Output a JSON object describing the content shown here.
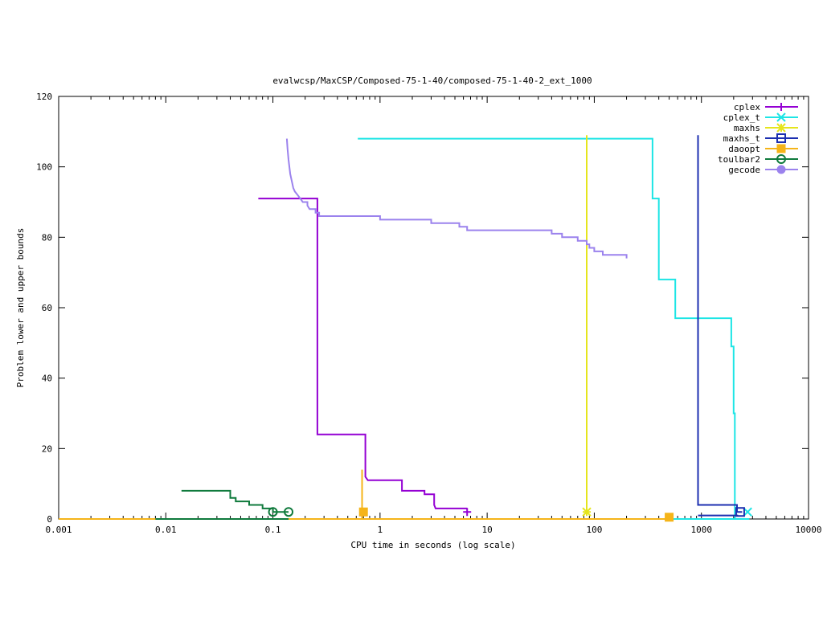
{
  "chart_data": {
    "type": "line",
    "title": "evalwcsp/MaxCSP/Composed-75-1-40/composed-75-1-40-2_ext_1000",
    "xlabel": "CPU time in seconds (log scale)",
    "ylabel": "Problem lower and upper bounds",
    "xscale": "log",
    "xlim": [
      0.001,
      10000
    ],
    "ylim": [
      0,
      120
    ],
    "xticks": [
      {
        "value": 0.001,
        "label": "0.001"
      },
      {
        "value": 0.01,
        "label": "0.01"
      },
      {
        "value": 0.1,
        "label": "0.1"
      },
      {
        "value": 1,
        "label": "1"
      },
      {
        "value": 10,
        "label": "10"
      },
      {
        "value": 100,
        "label": "100"
      },
      {
        "value": 1000,
        "label": "1000"
      },
      {
        "value": 10000,
        "label": "10000"
      }
    ],
    "yticks": [
      {
        "value": 0,
        "label": "0"
      },
      {
        "value": 20,
        "label": "20"
      },
      {
        "value": 40,
        "label": "40"
      },
      {
        "value": 60,
        "label": "60"
      },
      {
        "value": 80,
        "label": "80"
      },
      {
        "value": 100,
        "label": "100"
      },
      {
        "value": 120,
        "label": "120"
      }
    ],
    "legend_position": "top-right",
    "series": [
      {
        "name": "cplex",
        "color": "#9400d3",
        "marker": "plus",
        "points": [
          [
            0.073,
            91
          ],
          [
            0.26,
            91
          ],
          [
            0.26,
            24
          ],
          [
            0.73,
            24
          ],
          [
            0.73,
            12
          ],
          [
            0.77,
            11
          ],
          [
            1.2,
            11
          ],
          [
            1.6,
            11
          ],
          [
            1.6,
            8
          ],
          [
            2.6,
            8
          ],
          [
            2.6,
            7
          ],
          [
            3.2,
            7
          ],
          [
            3.2,
            4
          ],
          [
            3.3,
            3
          ],
          [
            6.5,
            3
          ]
        ],
        "lower": [
          [
            0.001,
            0
          ],
          [
            6.5,
            0
          ]
        ],
        "markers": [
          [
            6.5,
            2
          ]
        ]
      },
      {
        "name": "cplex_t",
        "color": "#1de5e5",
        "marker": "x",
        "points": [
          [
            0.62,
            108
          ],
          [
            350,
            108
          ],
          [
            350,
            91
          ],
          [
            400,
            91
          ],
          [
            400,
            68
          ],
          [
            570,
            68
          ],
          [
            570,
            57
          ],
          [
            1900,
            57
          ],
          [
            1900,
            49
          ],
          [
            2000,
            49
          ],
          [
            2000,
            30
          ],
          [
            2050,
            30
          ],
          [
            2050,
            0
          ],
          [
            2800,
            0
          ]
        ],
        "lower": [
          [
            520,
            0
          ],
          [
            2800,
            0
          ]
        ],
        "markers": [
          [
            2700,
            2
          ]
        ]
      },
      {
        "name": "maxhs",
        "color": "#e5e51d",
        "marker": "star",
        "points": [
          [
            85,
            109
          ],
          [
            85,
            2
          ]
        ],
        "lower": [],
        "markers": [
          [
            85,
            2
          ]
        ]
      },
      {
        "name": "maxhs_t",
        "color": "#1c2fb0",
        "marker": "box",
        "points": [
          [
            930,
            109
          ],
          [
            930,
            4
          ],
          [
            2150,
            4
          ],
          [
            2150,
            2
          ],
          [
            2400,
            2
          ]
        ],
        "lower": [
          [
            930,
            1
          ],
          [
            2200,
            1
          ]
        ],
        "markers": [
          [
            2300,
            2
          ]
        ]
      },
      {
        "name": "daoopt",
        "color": "#f5b419",
        "marker": "filled-box",
        "points": [
          [
            0.68,
            14
          ],
          [
            0.68,
            0
          ]
        ],
        "lower": [
          [
            0.001,
            0
          ],
          [
            500,
            0
          ]
        ],
        "markers": [
          [
            0.7,
            2
          ],
          [
            500,
            0.5
          ]
        ]
      },
      {
        "name": "toulbar2",
        "color": "#0f7a3c",
        "marker": "circle",
        "points": [
          [
            0.014,
            8
          ],
          [
            0.04,
            8
          ],
          [
            0.04,
            6
          ],
          [
            0.045,
            6
          ],
          [
            0.045,
            5
          ],
          [
            0.06,
            5
          ],
          [
            0.06,
            4
          ],
          [
            0.08,
            4
          ],
          [
            0.08,
            3
          ],
          [
            0.1,
            3
          ],
          [
            0.1,
            2
          ],
          [
            0.14,
            2
          ]
        ],
        "lower": [
          [
            0.008,
            0
          ],
          [
            0.14,
            0
          ]
        ],
        "markers": [
          [
            0.1,
            2
          ],
          [
            0.14,
            2
          ]
        ]
      },
      {
        "name": "gecode",
        "color": "#9b82ed",
        "marker": "filled-circle",
        "points": [
          [
            0.135,
            108
          ],
          [
            0.137,
            105
          ],
          [
            0.14,
            102
          ],
          [
            0.145,
            98
          ],
          [
            0.15,
            96
          ],
          [
            0.155,
            94
          ],
          [
            0.16,
            93
          ],
          [
            0.17,
            92
          ],
          [
            0.18,
            91
          ],
          [
            0.19,
            90
          ],
          [
            0.21,
            90
          ],
          [
            0.21,
            89
          ],
          [
            0.22,
            88
          ],
          [
            0.25,
            88
          ],
          [
            0.25,
            87
          ],
          [
            0.27,
            87
          ],
          [
            0.27,
            86
          ],
          [
            1.0,
            86
          ],
          [
            1.0,
            85
          ],
          [
            3.0,
            85
          ],
          [
            3.0,
            84
          ],
          [
            5.5,
            84
          ],
          [
            5.5,
            83
          ],
          [
            6.5,
            83
          ],
          [
            6.5,
            82
          ],
          [
            40,
            82
          ],
          [
            40,
            81
          ],
          [
            50,
            81
          ],
          [
            50,
            80
          ],
          [
            70,
            80
          ],
          [
            70,
            79
          ],
          [
            85,
            79
          ],
          [
            85,
            78
          ],
          [
            90,
            78
          ],
          [
            90,
            77
          ],
          [
            100,
            77
          ],
          [
            100,
            76
          ],
          [
            120,
            76
          ],
          [
            120,
            75
          ],
          [
            200,
            75
          ],
          [
            200,
            74
          ]
        ],
        "lower": [],
        "markers": []
      }
    ]
  }
}
